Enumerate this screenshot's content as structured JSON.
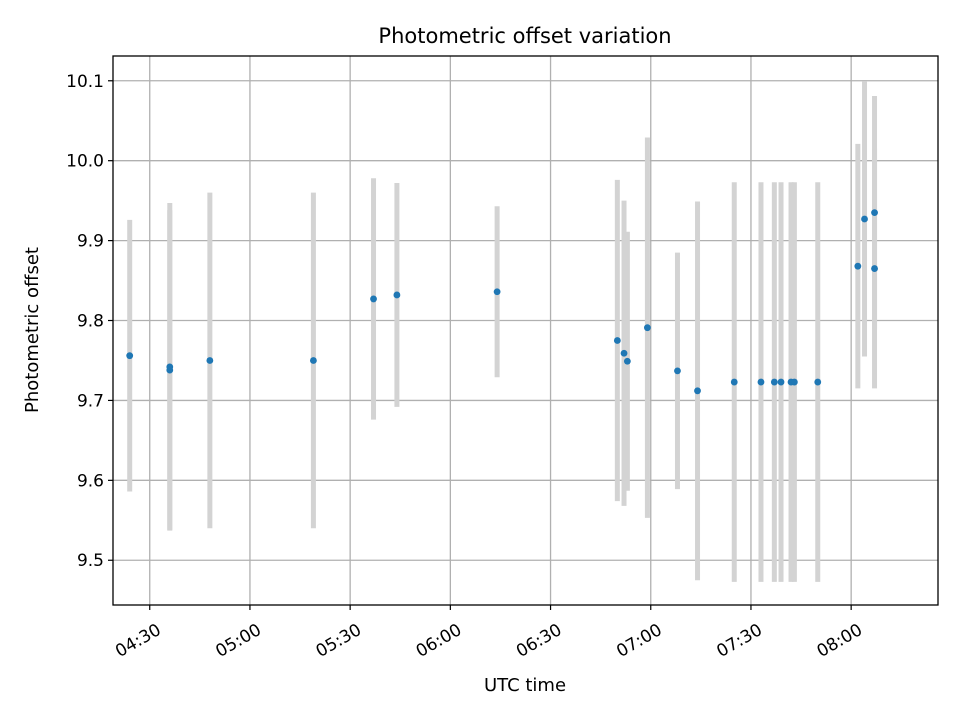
{
  "chart_data": {
    "type": "scatter",
    "title": "Photometric offset variation",
    "xlabel": "UTC time",
    "ylabel": "Photometric offset",
    "grid": true,
    "xlim": [
      "04:19",
      "08:26"
    ],
    "ylim": [
      9.444,
      10.131
    ],
    "x_ticks": [
      "04:30",
      "05:00",
      "05:30",
      "06:00",
      "06:30",
      "07:00",
      "07:30",
      "08:00"
    ],
    "y_ticks": [
      "9.5",
      "9.6",
      "9.7",
      "9.8",
      "9.9",
      "10.0",
      "10.1"
    ],
    "point_color": "#1f77b4",
    "errorbar_color": "#d3d3d3",
    "points": [
      {
        "x": "04:24",
        "y": 9.756,
        "yerr": 0.17
      },
      {
        "x": "04:36",
        "y": 9.738,
        "yerr": 0.2
      },
      {
        "x": "04:36",
        "y": 9.742,
        "yerr": 0.205
      },
      {
        "x": "04:48",
        "y": 9.75,
        "yerr": 0.21
      },
      {
        "x": "05:19",
        "y": 9.75,
        "yerr": 0.21
      },
      {
        "x": "05:37",
        "y": 9.827,
        "yerr": 0.151
      },
      {
        "x": "05:44",
        "y": 9.832,
        "yerr": 0.14
      },
      {
        "x": "06:14",
        "y": 9.836,
        "yerr": 0.107
      },
      {
        "x": "06:50",
        "y": 9.775,
        "yerr": 0.201
      },
      {
        "x": "06:52",
        "y": 9.759,
        "yerr": 0.191
      },
      {
        "x": "06:53",
        "y": 9.749,
        "yerr": 0.162
      },
      {
        "x": "06:59",
        "y": 9.791,
        "yerr": 0.238
      },
      {
        "x": "07:08",
        "y": 9.737,
        "yerr": 0.148
      },
      {
        "x": "07:14",
        "y": 9.712,
        "yerr": 0.237
      },
      {
        "x": "07:25",
        "y": 9.723,
        "yerr": 0.25
      },
      {
        "x": "07:33",
        "y": 9.723,
        "yerr": 0.25
      },
      {
        "x": "07:37",
        "y": 9.723,
        "yerr": 0.25
      },
      {
        "x": "07:39",
        "y": 9.723,
        "yerr": 0.25
      },
      {
        "x": "07:42",
        "y": 9.723,
        "yerr": 0.25
      },
      {
        "x": "07:43",
        "y": 9.723,
        "yerr": 0.25
      },
      {
        "x": "07:50",
        "y": 9.723,
        "yerr": 0.25
      },
      {
        "x": "08:02",
        "y": 9.868,
        "yerr": 0.153
      },
      {
        "x": "08:04",
        "y": 9.927,
        "yerr": 0.172
      },
      {
        "x": "08:07",
        "y": 9.865,
        "yerr": 0.15
      },
      {
        "x": "08:07",
        "y": 9.935,
        "yerr": 0.146
      }
    ]
  }
}
